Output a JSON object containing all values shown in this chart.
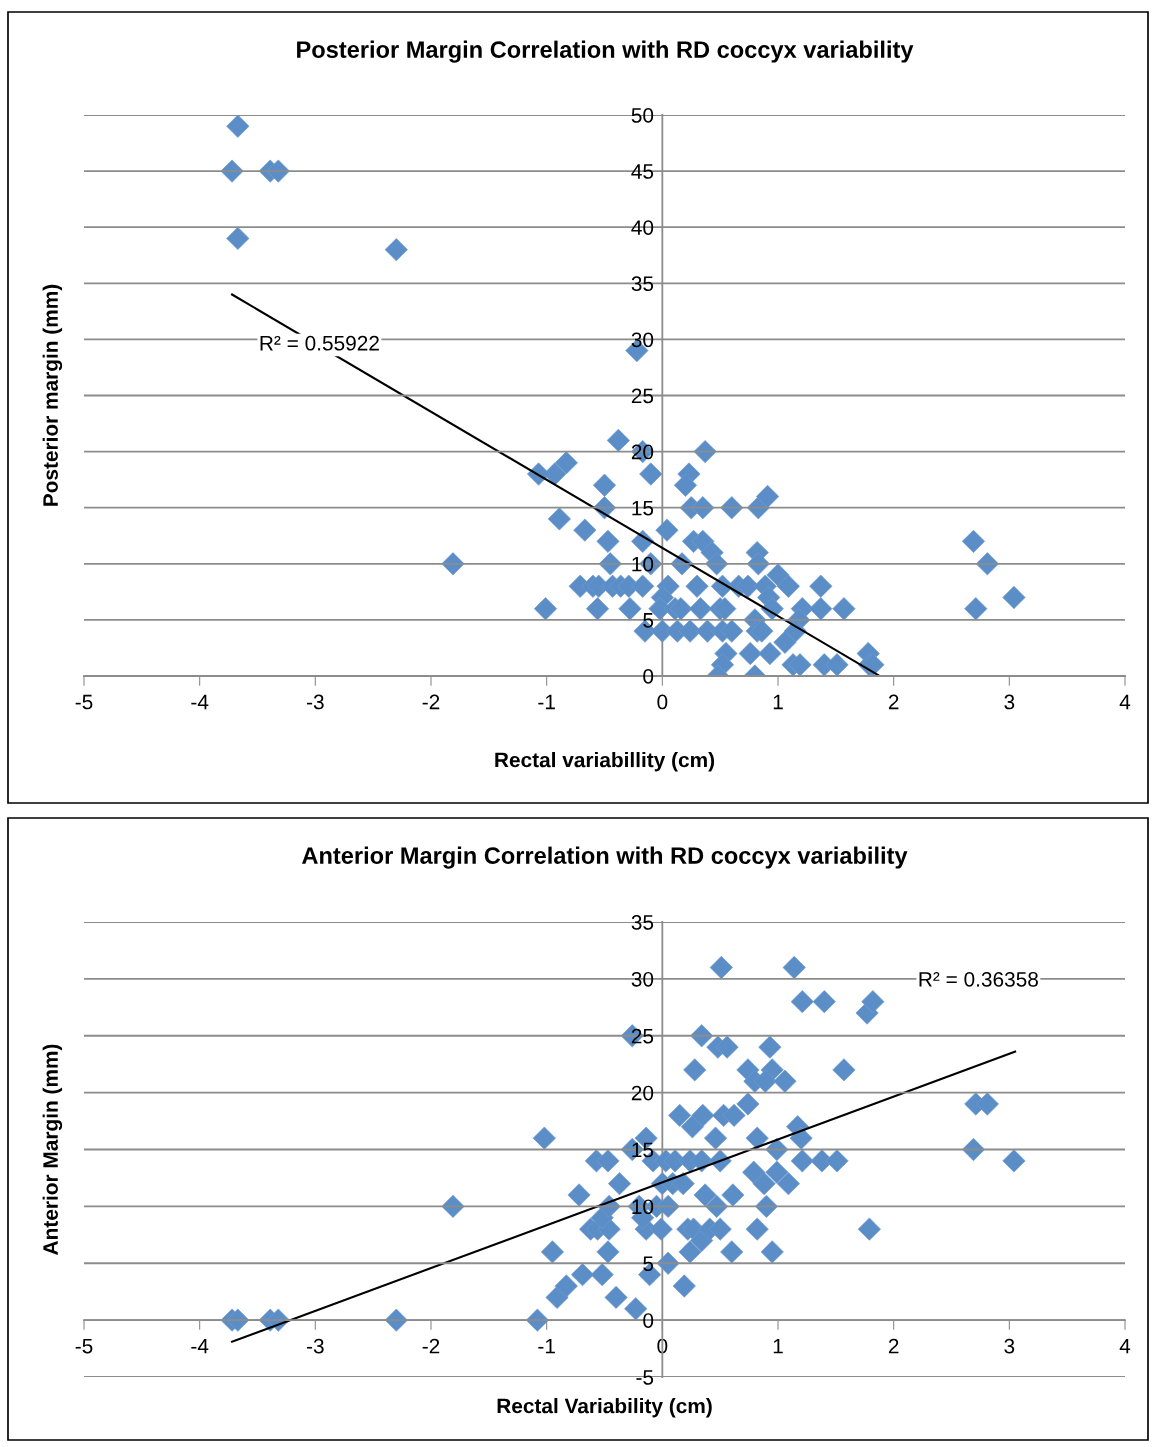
{
  "chart_data": [
    {
      "type": "scatter",
      "title": "Posterior Margin Correlation with RD coccyx variability",
      "xlabel": "Rectal variabillity (cm)",
      "ylabel": "Posterior margin (mm)",
      "xlim": [
        -5,
        4
      ],
      "xticks": [
        -5,
        -4,
        -3,
        -2,
        -1,
        0,
        1,
        2,
        3,
        4
      ],
      "ylim": [
        0,
        50
      ],
      "yticks": [
        0,
        5,
        10,
        15,
        20,
        25,
        30,
        35,
        40,
        45,
        50
      ],
      "grid": "y",
      "marker": "diamond",
      "series": [
        {
          "color": "#5b8ec7",
          "x": [
            -3.67,
            -3.72,
            -3.39,
            -3.32,
            -3.67,
            -2.3,
            -0.22,
            -0.38,
            -0.17,
            0.37,
            -0.83,
            -0.93,
            -1.07,
            -0.1,
            0.23,
            0.2,
            -0.5,
            0.25,
            0.35,
            0.6,
            0.83,
            0.91,
            -0.5,
            -0.89,
            -0.67,
            0.04,
            -0.47,
            -0.17,
            0.27,
            0.35,
            0.43,
            0.82,
            0.47,
            0.83,
            -0.45,
            -0.1,
            0.17,
            1.0,
            1.09,
            1.37,
            -1.81,
            -0.71,
            -0.6,
            -0.55,
            -0.43,
            -0.36,
            -0.29,
            -0.17,
            0.05,
            0.3,
            0.52,
            0.66,
            0.74,
            0.89,
            0,
            0.92,
            -1.01,
            -0.56,
            -0.28,
            -0.02,
            0.11,
            0.16,
            0.33,
            0.5,
            0.54,
            0.95,
            1.21,
            1.37,
            1.57,
            2.71,
            2.81,
            2.69,
            3.04,
            0.8,
            1.18,
            -0.15,
            0,
            0.13,
            0.24,
            0.39,
            0.52,
            0.6,
            0.82,
            0.86,
            1.15,
            1.06,
            0.55,
            0.76,
            0.93,
            1.78,
            0.52,
            1.13,
            1.19,
            1.4,
            1.51,
            1.79,
            1.82,
            0.48,
            0.8
          ],
          "values": [
            49,
            45,
            45,
            45,
            39,
            38,
            29,
            21,
            20,
            20,
            19,
            18,
            18,
            18,
            18,
            17,
            17,
            15,
            15,
            15,
            15,
            16,
            15,
            14,
            13,
            13,
            12,
            12,
            12,
            12,
            11,
            11,
            10,
            10,
            10,
            10,
            10,
            9,
            8,
            8,
            10,
            8,
            8,
            8,
            8,
            8,
            8,
            8,
            8,
            8,
            8,
            8,
            8,
            8,
            7,
            7,
            6,
            6,
            6,
            6,
            6,
            6,
            6,
            6,
            6,
            6,
            6,
            6,
            6,
            6,
            10,
            12,
            7,
            5,
            5,
            4,
            4,
            4,
            4,
            4,
            4,
            4,
            4,
            4,
            4,
            3,
            2,
            2,
            2,
            2,
            1,
            1,
            1,
            1,
            1,
            1,
            1,
            0,
            0
          ]
        },
        {
          "type": "line",
          "color": "#000000",
          "marker": "none",
          "x": [
            -3.72,
            1.88
          ],
          "values": [
            34,
            0
          ]
        }
      ],
      "annotations": [
        "R² = 0.55922"
      ]
    },
    {
      "type": "scatter",
      "title": "Anterior Margin Correlation with RD coccyx variability",
      "xlabel": "Rectal Variability (cm)",
      "ylabel": "Anterior Margin (mm)",
      "xlim": [
        -5,
        4
      ],
      "xticks": [
        -5,
        -4,
        -3,
        -2,
        -1,
        0,
        1,
        2,
        3,
        4
      ],
      "ylim": [
        -5,
        35
      ],
      "yticks": [
        -5,
        0,
        5,
        10,
        15,
        20,
        25,
        30,
        35
      ],
      "grid": "y",
      "marker": "diamond",
      "series": [
        {
          "color": "#5b8ec7",
          "x": [
            -1.02,
            -1.08,
            -0.95,
            -0.72,
            -0.91,
            -0.83,
            -0.69,
            -0.52,
            -0.4,
            -0.23,
            -0.11,
            0.05,
            0.19,
            0.24,
            0.6,
            0.95,
            -0.57,
            -0.47,
            -0.37,
            -0.14,
            -0.26,
            -0.08,
            0.03,
            0.11,
            0.24,
            0.34,
            0.5,
            -0.62,
            -0.56,
            -0.46,
            -0.52,
            -0.46,
            -0.47,
            -0.2,
            -0.14,
            -0.17,
            -0.05,
            -0.01,
            0.05,
            0.0,
            0.09,
            0.18,
            0.22,
            0.27,
            0.34,
            0.41,
            0.5,
            0.37,
            0.47,
            0.61,
            0.82,
            0.9,
            0.79,
            0.88,
            0.99,
            1.09,
            0.82,
            0.99,
            1.17,
            1.2,
            1.21,
            1.38,
            1.51,
            1.79,
            0.15,
            0.26,
            0.35,
            0.53,
            0.62,
            0.46,
            0.74,
            0.28,
            0.74,
            0.95,
            0.8,
            0.89,
            1.06,
            0.34,
            -0.26,
            0.48,
            0.56,
            0.93,
            0.51,
            1.14,
            1.21,
            1.4,
            1.77,
            1.82,
            1.57,
            2.69,
            2.71,
            2.81,
            3.04,
            -1.81,
            -2.3,
            -3.72,
            -3.67,
            -3.39,
            -3.32
          ],
          "values": [
            16,
            0,
            6,
            11,
            2,
            3,
            4,
            4,
            2,
            1,
            4,
            5,
            3,
            6,
            6,
            6,
            14,
            14,
            12,
            16,
            15,
            14,
            14,
            14,
            14,
            14,
            14,
            8,
            8,
            8,
            9,
            10,
            6,
            10,
            8,
            9,
            10,
            8,
            10,
            12,
            12,
            12,
            8,
            8,
            7,
            8,
            8,
            11,
            10,
            11,
            8,
            10,
            13,
            12,
            13,
            12,
            16,
            15,
            17,
            16,
            14,
            14,
            14,
            8,
            18,
            17,
            18,
            18,
            18,
            16,
            19,
            22,
            22,
            22,
            21,
            21,
            21,
            25,
            25,
            24,
            24,
            24,
            31,
            31,
            28,
            28,
            27,
            28,
            22,
            15,
            19,
            19,
            14,
            10,
            0,
            0,
            0,
            0,
            0
          ]
        },
        {
          "type": "line",
          "color": "#000000",
          "marker": "none",
          "x": [
            -3.72,
            3.05
          ],
          "values": [
            -1.9,
            23.6
          ]
        }
      ],
      "annotations": [
        "R² = 0.36358"
      ]
    }
  ]
}
